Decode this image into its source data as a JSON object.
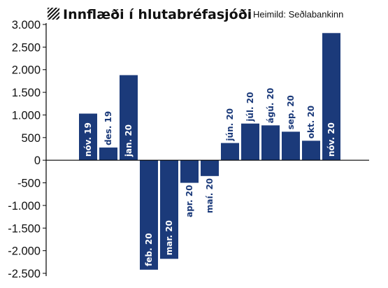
{
  "header": {
    "title": "Innflæði í hlutabréfasjóði",
    "source": "Heimild: Seðlabankinn",
    "title_icon": "hatched-square-icon"
  },
  "chart_data": {
    "type": "bar",
    "title": "Innflæði í hlutabréfasjóði",
    "source": "Heimild: Seðlabankinn",
    "xlabel": "",
    "ylabel": "",
    "ylim": [
      -2500,
      3000
    ],
    "yticks": [
      3000,
      2500,
      2000,
      1500,
      1000,
      500,
      0,
      -500,
      -1000,
      -1500,
      -2000,
      -2500
    ],
    "ytick_labels": [
      "3.000",
      "2.500",
      "2.000",
      "1.500",
      "1.000",
      "500",
      "0",
      "-500",
      "-1.000",
      "-1.500",
      "-2.000",
      "-2.500"
    ],
    "grid": false,
    "categories": [
      "nóv. 19",
      "des. 19",
      "jan. 20",
      "feb. 20",
      "mar. 20",
      "apr. 20",
      "maí. 20",
      "jún. 20",
      "júl. 20",
      "ágú. 20",
      "sep. 20",
      "okt. 20",
      "nóv. 20"
    ],
    "values": [
      1030,
      280,
      1880,
      -2420,
      -2180,
      -500,
      -350,
      380,
      810,
      770,
      630,
      430,
      2810
    ],
    "colors": {
      "bar": "#1b3a7a",
      "label_inside": "#ffffff",
      "label_outside": "#1b3a7a",
      "axis": "#000000"
    }
  }
}
